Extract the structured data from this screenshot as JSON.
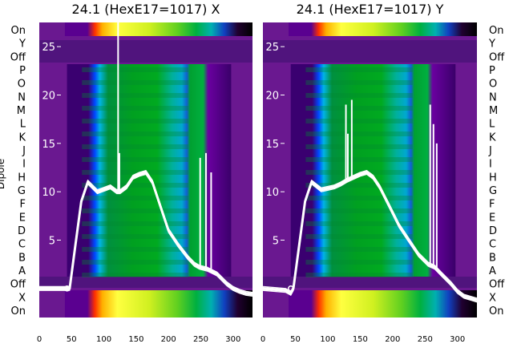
{
  "chart_data": [
    {
      "type": "heatmap",
      "title": "24.1 (HexE17=1017) X",
      "ylabel": "Dipole",
      "x_ticks": [
        0,
        50,
        100,
        150,
        200,
        250,
        300
      ],
      "xlim": [
        0,
        330
      ],
      "rows": [
        "On",
        "Y",
        "Off",
        "P",
        "O",
        "N",
        "M",
        "L",
        "K",
        "J",
        "I",
        "H",
        "G",
        "F",
        "E",
        "D",
        "C",
        "B",
        "A",
        "Off",
        "X",
        "On"
      ],
      "overlay": {
        "type": "line",
        "color": "#ffffff",
        "y_ticks": [
          5,
          10,
          15,
          20,
          25
        ],
        "ylim": [
          -3,
          27.5
        ],
        "x": [
          0,
          35,
          43,
          47,
          55,
          65,
          75,
          90,
          110,
          120,
          125,
          135,
          145,
          155,
          165,
          175,
          185,
          200,
          215,
          230,
          240,
          248,
          260,
          275,
          290,
          300,
          310,
          320,
          330
        ],
        "y": [
          0,
          0,
          0,
          0,
          4,
          9,
          11,
          10,
          10.5,
          10,
          10,
          10.5,
          11.5,
          11.8,
          12,
          11,
          9,
          6,
          4.5,
          3.2,
          2.5,
          2.2,
          2.0,
          1.5,
          0.5,
          0,
          -0.3,
          -0.5,
          -0.6
        ],
        "spikes": [
          {
            "x": 122,
            "y_top": 28
          },
          {
            "x": 124,
            "y_top": 14
          },
          {
            "x": 249,
            "y_top": 13.5
          },
          {
            "x": 258,
            "y_top": 14
          },
          {
            "x": 266,
            "y_top": 12
          }
        ]
      }
    },
    {
      "type": "heatmap",
      "title": "24.1 (HexE17=1017) Y",
      "x_ticks": [
        0,
        50,
        100,
        150,
        200,
        250,
        300
      ],
      "xlim": [
        0,
        330
      ],
      "rows": [
        "On",
        "Y",
        "Off",
        "P",
        "O",
        "N",
        "M",
        "L",
        "K",
        "J",
        "I",
        "H",
        "G",
        "F",
        "E",
        "D",
        "C",
        "B",
        "A",
        "Off",
        "X",
        "On"
      ],
      "overlay": {
        "type": "line",
        "color": "#ffffff",
        "y_ticks": [
          5,
          10,
          15,
          20,
          25
        ],
        "ylim": [
          -3,
          27.5
        ],
        "x": [
          0,
          35,
          43,
          47,
          55,
          65,
          75,
          90,
          110,
          120,
          130,
          140,
          150,
          160,
          170,
          180,
          195,
          210,
          225,
          240,
          255,
          265,
          275,
          290,
          300,
          310,
          320,
          330
        ],
        "y": [
          0,
          -0.2,
          -0.5,
          0,
          4,
          9,
          11,
          10.2,
          10.5,
          10.8,
          11.2,
          11.5,
          11.8,
          12,
          11.5,
          10.5,
          8.5,
          6.5,
          5,
          3.5,
          2.5,
          2.2,
          1.5,
          0.5,
          -0.3,
          -0.8,
          -1.0,
          -1.2
        ],
        "spikes": [
          {
            "x": 128,
            "y_top": 19
          },
          {
            "x": 131,
            "y_top": 16
          },
          {
            "x": 137,
            "y_top": 19.5
          },
          {
            "x": 258,
            "y_top": 19
          },
          {
            "x": 263,
            "y_top": 17
          },
          {
            "x": 268,
            "y_top": 15
          }
        ]
      }
    }
  ]
}
